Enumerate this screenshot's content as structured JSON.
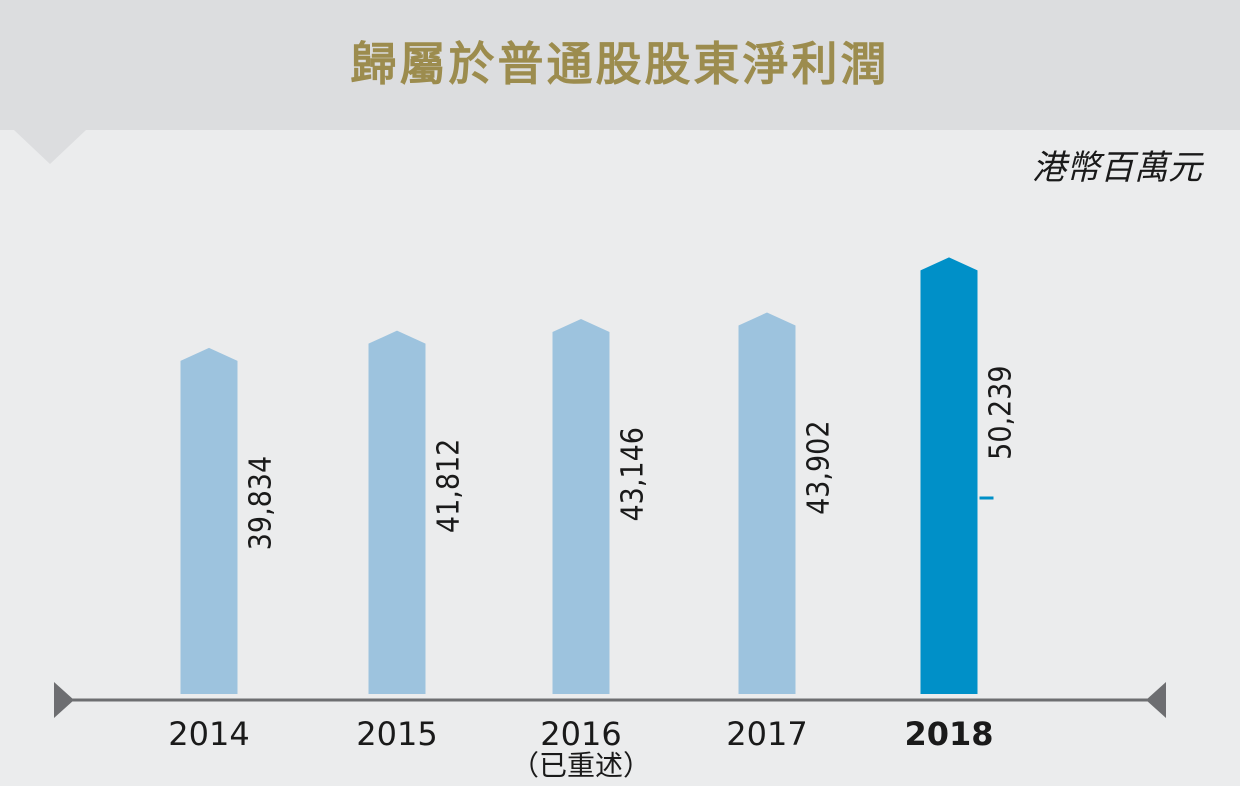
{
  "header": {
    "title": "歸屬於普通股股東淨利潤",
    "unit": "港幣百萬元"
  },
  "chart_data": {
    "type": "bar",
    "title": "歸屬於普通股股東淨利潤",
    "ylabel": "港幣百萬元",
    "categories": [
      "2014",
      "2015",
      "2016",
      "2017",
      "2018"
    ],
    "values": [
      39834,
      41812,
      43146,
      43902,
      50239
    ],
    "value_labels": [
      "39,834",
      "41,812",
      "43,146",
      "43,902",
      "50,239"
    ],
    "category_notes": [
      "",
      "",
      "（已重述）",
      "",
      ""
    ],
    "highlight_index": 4,
    "colors": {
      "normal": "#9dc3de",
      "highlight": "#0090c8",
      "axis": "#6d6e71"
    },
    "grid": false
  }
}
